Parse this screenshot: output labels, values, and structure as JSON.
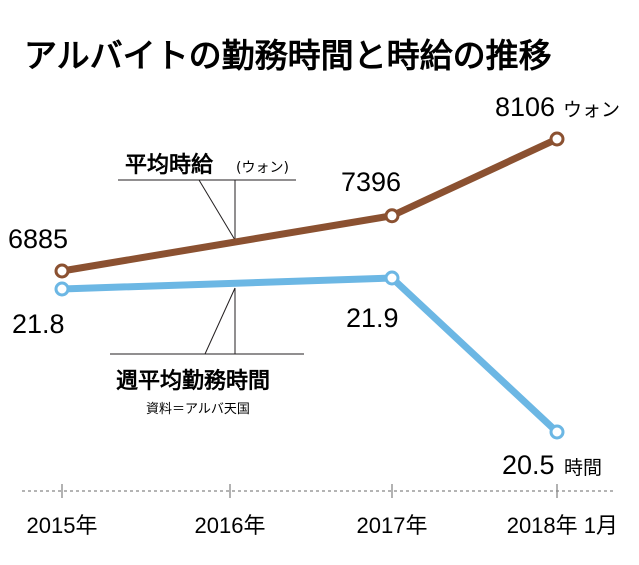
{
  "chart_data": {
    "type": "line",
    "title": "アルバイトの勤務時間と時給の推移",
    "categories": [
      "2015年",
      "2016年",
      "2017年",
      "2018年 1月"
    ],
    "series": [
      {
        "name": "平均時給",
        "unit": "(ウォン)",
        "values": [
          6885,
          null,
          7396,
          8106
        ],
        "data_labels": [
          "6885",
          "7396",
          "8106"
        ],
        "end_unit": "ウォン",
        "color": "#8b5131"
      },
      {
        "name": "週平均勤務時間",
        "values": [
          21.8,
          null,
          21.9,
          20.5
        ],
        "data_labels": [
          "21.8",
          "21.9",
          "20.5"
        ],
        "end_unit": "時間",
        "color": "#6cb7e4"
      }
    ],
    "source": "資料＝アルバ天国",
    "grid": false,
    "axis_line_color": "#888888"
  }
}
